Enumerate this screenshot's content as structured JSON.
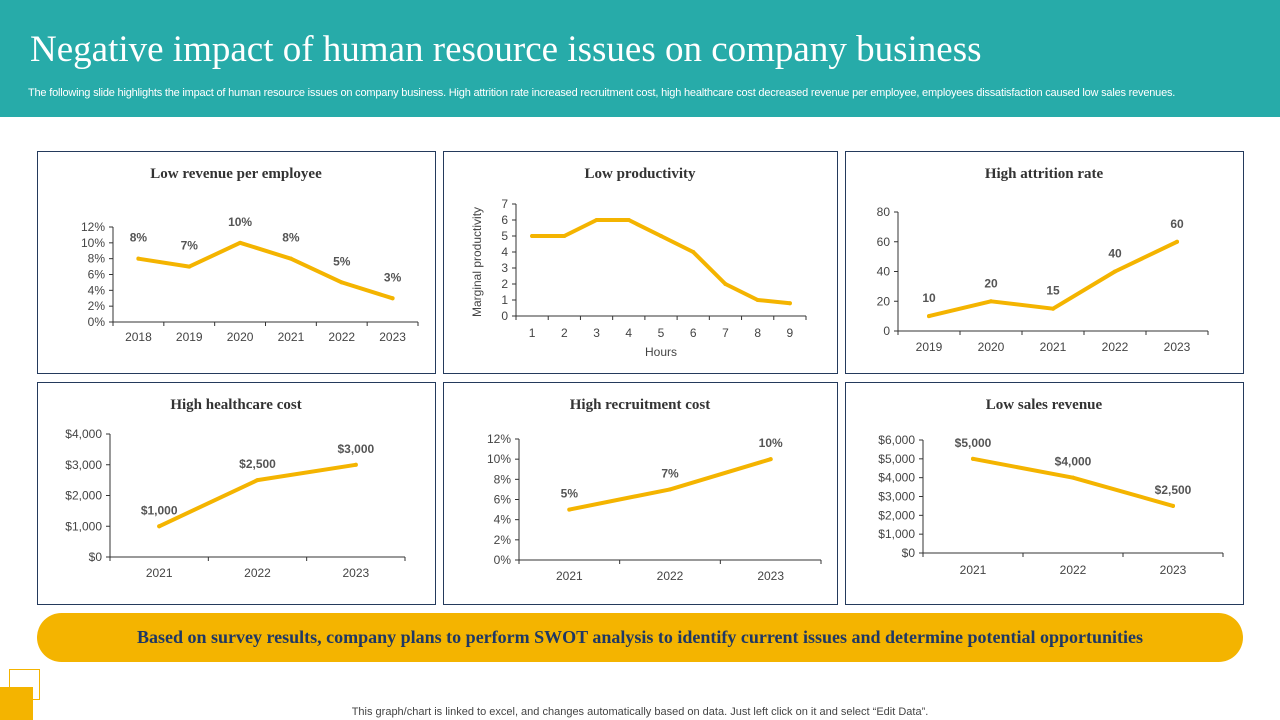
{
  "header": {
    "title": "Negative impact of human resource issues on company business",
    "subtitle": "The following slide highlights the impact of human resource issues on company business. High attrition rate increased recruitment cost, high healthcare cost decreased revenue per employee, employees dissatisfaction caused low sales revenues."
  },
  "colors": {
    "header_bg": "#27aba9",
    "accent": "#f4b400",
    "banner_text": "#1f3864",
    "panel_border": "#243a5c"
  },
  "chart_data": [
    {
      "type": "line",
      "title": "Low revenue per employee",
      "categories": [
        "2018",
        "2019",
        "2020",
        "2021",
        "2022",
        "2023"
      ],
      "values": [
        8,
        7,
        10,
        8,
        5,
        3
      ],
      "data_labels": [
        "8%",
        "7%",
        "10%",
        "8%",
        "5%",
        "3%"
      ],
      "yticks": [
        "0%",
        "2%",
        "4%",
        "6%",
        "8%",
        "10%",
        "12%"
      ],
      "ylim": [
        0,
        12
      ],
      "xlabel": "",
      "ylabel": ""
    },
    {
      "type": "line",
      "title": "Low productivity",
      "categories": [
        "1",
        "2",
        "3",
        "4",
        "5",
        "6",
        "7",
        "8",
        "9"
      ],
      "values": [
        5,
        5,
        6,
        6,
        5,
        4,
        2,
        1,
        0.8
      ],
      "data_labels": [],
      "yticks": [
        "0",
        "1",
        "2",
        "3",
        "4",
        "5",
        "6",
        "7"
      ],
      "ylim": [
        0,
        7
      ],
      "xlabel": "Hours",
      "ylabel": "Marginal productivity"
    },
    {
      "type": "line",
      "title": "High attrition rate",
      "categories": [
        "2019",
        "2020",
        "2021",
        "2022",
        "2023"
      ],
      "values": [
        10,
        20,
        15,
        40,
        60
      ],
      "data_labels": [
        "10",
        "20",
        "15",
        "40",
        "60"
      ],
      "yticks": [
        "0",
        "20",
        "40",
        "60",
        "80"
      ],
      "ylim": [
        0,
        80
      ],
      "xlabel": "",
      "ylabel": ""
    },
    {
      "type": "line",
      "title": "High healthcare cost",
      "categories": [
        "2021",
        "2022",
        "2023"
      ],
      "values": [
        1000,
        2500,
        3000
      ],
      "data_labels": [
        "$1,000",
        "$2,500",
        "$3,000"
      ],
      "yticks": [
        "$0",
        "$1,000",
        "$2,000",
        "$3,000",
        "$4,000"
      ],
      "ylim": [
        0,
        4000
      ],
      "xlabel": "",
      "ylabel": ""
    },
    {
      "type": "line",
      "title": "High recruitment cost",
      "categories": [
        "2021",
        "2022",
        "2023"
      ],
      "values": [
        5,
        7,
        10
      ],
      "data_labels": [
        "5%",
        "7%",
        "10%"
      ],
      "yticks": [
        "0%",
        "2%",
        "4%",
        "6%",
        "8%",
        "10%",
        "12%"
      ],
      "ylim": [
        0,
        12
      ],
      "xlabel": "",
      "ylabel": ""
    },
    {
      "type": "line",
      "title": "Low sales revenue",
      "categories": [
        "2021",
        "2022",
        "2023"
      ],
      "values": [
        5000,
        4000,
        2500
      ],
      "data_labels": [
        "$5,000",
        "$4,000",
        "$2,500"
      ],
      "yticks": [
        "$0",
        "$1,000",
        "$2,000",
        "$3,000",
        "$4,000",
        "$5,000",
        "$6,000"
      ],
      "ylim": [
        0,
        6000
      ],
      "xlabel": "",
      "ylabel": ""
    }
  ],
  "banner": {
    "text": "Based on survey results, company plans to perform SWOT analysis to identify current issues and determine potential opportunities"
  },
  "footer": {
    "text": "This graph/chart is linked to excel, and changes automatically based on data. Just left click on it and select “Edit Data”."
  }
}
